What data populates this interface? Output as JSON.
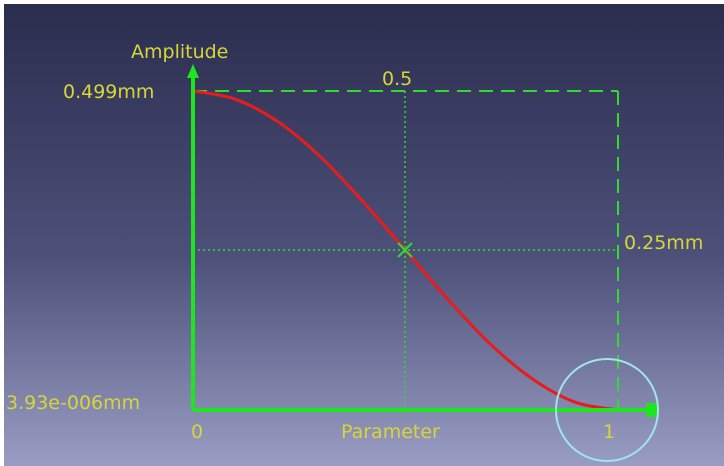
{
  "curve_viewer": {
    "axis_title_y": "Amplitude",
    "axis_title_x": "Parameter",
    "y_max_label": "0.499mm",
    "y_min_label": "3.93e-006mm",
    "mid_x_label": "0.5",
    "mid_y_label": "0.25mm",
    "x_start_label": "0",
    "x_end_label": "1",
    "colors": {
      "curve": "#e81c1c",
      "axes": "#1ee61e",
      "labels": "#d6d63a",
      "guides": "#2fdc2f",
      "selection_circle": "#9fe6ea",
      "background_top": "#2b2d4e",
      "background_bottom": "#9a9dc3"
    }
  },
  "chart_data": {
    "type": "line",
    "title": "",
    "xlabel": "Parameter",
    "ylabel": "Amplitude",
    "xlim": [
      0,
      1
    ],
    "ylim": [
      3.93e-06,
      0.499
    ],
    "x_ticks": [
      "0",
      "0.5",
      "1"
    ],
    "y_ticks": [
      "3.93e-006mm",
      "0.25mm",
      "0.499mm"
    ],
    "grid": true,
    "series": [
      {
        "x": [
          0,
          0.1,
          0.2,
          0.3,
          0.4,
          0.5,
          0.6,
          0.7,
          0.8,
          0.9,
          1
        ],
        "y": [
          0.499,
          0.486,
          0.451,
          0.396,
          0.326,
          0.25,
          0.173,
          0.103,
          0.048,
          0.012,
          3.93e-06
        ]
      }
    ]
  }
}
